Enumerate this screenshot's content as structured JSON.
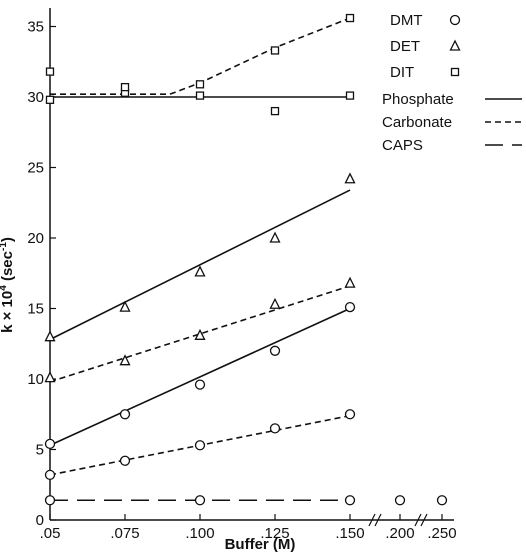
{
  "chart_data": {
    "type": "scatter",
    "title": "",
    "xlabel": "Buffer (M)",
    "ylabel_main": "k × 10",
    "ylabel_exp": "4",
    "ylabel_unit": " (sec",
    "ylabel_unit_exp": "-1",
    "ylabel_close": ")",
    "ylim": [
      0,
      36
    ],
    "yticks": [
      0,
      5,
      10,
      15,
      20,
      25,
      30,
      35
    ],
    "xticks": [
      {
        "label": ".05",
        "x": 0.05
      },
      {
        "label": ".075",
        "x": 0.075
      },
      {
        "label": ".100",
        "x": 0.1
      },
      {
        "label": ".125",
        "x": 0.125
      },
      {
        "label": ".150",
        "x": 0.15
      },
      {
        "label": ".200",
        "x": 0.2
      },
      {
        "label": ".250",
        "x": 0.25
      }
    ],
    "axis_breaks": [
      ".150–.200",
      ".200–.250"
    ],
    "series": [
      {
        "name": "DMT",
        "marker": "circle",
        "buffer": "Phosphate",
        "points": [
          [
            0.05,
            5.4
          ],
          [
            0.075,
            7.5
          ],
          [
            0.1,
            9.6
          ],
          [
            0.125,
            12.0
          ],
          [
            0.15,
            15.1
          ]
        ],
        "fit": [
          [
            0.05,
            5.3
          ],
          [
            0.15,
            15.0
          ]
        ]
      },
      {
        "name": "DMT",
        "marker": "circle",
        "buffer": "Carbonate",
        "points": [
          [
            0.05,
            3.2
          ],
          [
            0.075,
            4.2
          ],
          [
            0.1,
            5.3
          ],
          [
            0.125,
            6.5
          ],
          [
            0.15,
            7.5
          ]
        ],
        "fit": [
          [
            0.05,
            3.2
          ],
          [
            0.15,
            7.4
          ]
        ]
      },
      {
        "name": "DMT",
        "marker": "circle",
        "buffer": "CAPS",
        "points": [
          [
            0.05,
            1.4
          ],
          [
            0.1,
            1.4
          ],
          [
            0.15,
            1.4
          ],
          [
            0.2,
            1.4
          ],
          [
            0.25,
            1.4
          ]
        ],
        "fit": [
          [
            0.05,
            1.4
          ],
          [
            0.15,
            1.4
          ]
        ]
      },
      {
        "name": "DET",
        "marker": "triangle",
        "buffer": "Phosphate",
        "points": [
          [
            0.05,
            13.0
          ],
          [
            0.075,
            15.1
          ],
          [
            0.1,
            17.6
          ],
          [
            0.125,
            20.0
          ],
          [
            0.15,
            24.2
          ]
        ],
        "fit": [
          [
            0.05,
            12.8
          ],
          [
            0.15,
            23.4
          ]
        ]
      },
      {
        "name": "DET",
        "marker": "triangle",
        "buffer": "Carbonate",
        "points": [
          [
            0.05,
            10.1
          ],
          [
            0.075,
            11.3
          ],
          [
            0.1,
            13.1
          ],
          [
            0.125,
            15.3
          ],
          [
            0.15,
            16.8
          ]
        ],
        "fit": [
          [
            0.05,
            9.8
          ],
          [
            0.15,
            16.6
          ]
        ]
      },
      {
        "name": "DIT",
        "marker": "square",
        "buffer": "Phosphate",
        "points": [
          [
            0.05,
            29.8
          ],
          [
            0.075,
            30.3
          ],
          [
            0.1,
            30.1
          ],
          [
            0.125,
            29.0
          ],
          [
            0.15,
            30.1
          ]
        ],
        "fit": [
          [
            0.05,
            30.0
          ],
          [
            0.15,
            30.0
          ]
        ]
      },
      {
        "name": "DIT",
        "marker": "square",
        "buffer": "Carbonate",
        "points": [
          [
            0.05,
            31.8
          ],
          [
            0.075,
            30.7
          ],
          [
            0.1,
            30.9
          ],
          [
            0.125,
            33.3
          ],
          [
            0.15,
            35.6
          ]
        ],
        "fit": [
          [
            0.05,
            30.2
          ],
          [
            0.075,
            30.2
          ],
          [
            0.09,
            30.2
          ],
          [
            0.1,
            31.0
          ],
          [
            0.125,
            33.5
          ],
          [
            0.15,
            35.6
          ]
        ]
      }
    ],
    "legend": {
      "placement": "top-right",
      "markers": [
        {
          "label": "DMT",
          "marker": "circle"
        },
        {
          "label": "DET",
          "marker": "triangle"
        },
        {
          "label": "DIT",
          "marker": "square"
        }
      ],
      "lines": [
        {
          "label": "Phosphate",
          "style": "solid"
        },
        {
          "label": "Carbonate",
          "style": "short-dash"
        },
        {
          "label": "CAPS",
          "style": "long-dash"
        }
      ]
    }
  }
}
